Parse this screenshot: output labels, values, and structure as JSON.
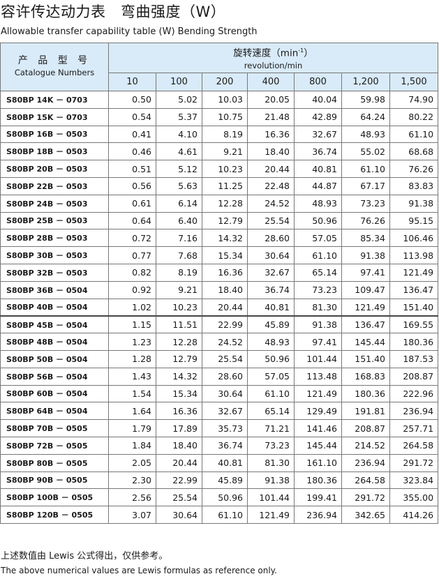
{
  "title": "容许传达动力表　弯曲强度（W）",
  "subtitle": "Allowable transfer capability table (W) Bending Strength",
  "header": {
    "catalogue_zh": "产 品 型 号",
    "catalogue_en": "Catalogue Numbers",
    "speed_zh_prefix": "旋转速度（min",
    "speed_sup": "-1",
    "speed_zh_suffix": "）",
    "speed_en": "revolution/min"
  },
  "columns": [
    "10",
    "100",
    "200",
    "400",
    "800",
    "1,200",
    "1,500"
  ],
  "rows": [
    {
      "model": "S80BP 14K － 0703",
      "values": [
        "0.50",
        "5.02",
        "10.03",
        "20.05",
        "40.04",
        "59.98",
        "74.90"
      ]
    },
    {
      "model": "S80BP 15K － 0703",
      "values": [
        "0.54",
        "5.37",
        "10.75",
        "21.48",
        "42.89",
        "64.24",
        "80.22"
      ]
    },
    {
      "model": "S80BP 16B － 0503",
      "values": [
        "0.41",
        "4.10",
        "8.19",
        "16.36",
        "32.67",
        "48.93",
        "61.10"
      ]
    },
    {
      "model": "S80BP 18B － 0503",
      "values": [
        "0.46",
        "4.61",
        "9.21",
        "18.40",
        "36.74",
        "55.02",
        "68.68"
      ]
    },
    {
      "model": "S80BP 20B － 0503",
      "values": [
        "0.51",
        "5.12",
        "10.23",
        "20.44",
        "40.81",
        "61.10",
        "76.26"
      ]
    },
    {
      "model": "S80BP 22B － 0503",
      "values": [
        "0.56",
        "5.63",
        "11.25",
        "22.48",
        "44.87",
        "67.17",
        "83.83"
      ]
    },
    {
      "model": "S80BP 24B － 0503",
      "values": [
        "0.61",
        "6.14",
        "12.28",
        "24.52",
        "48.93",
        "73.23",
        "91.38"
      ]
    },
    {
      "model": "S80BP 25B － 0503",
      "values": [
        "0.64",
        "6.40",
        "12.79",
        "25.54",
        "50.96",
        "76.26",
        "95.15"
      ]
    },
    {
      "model": "S80BP 28B － 0503",
      "values": [
        "0.72",
        "7.16",
        "14.32",
        "28.60",
        "57.05",
        "85.34",
        "106.46"
      ]
    },
    {
      "model": "S80BP 30B － 0503",
      "values": [
        "0.77",
        "7.68",
        "15.34",
        "30.64",
        "61.10",
        "91.38",
        "113.98"
      ]
    },
    {
      "model": "S80BP 32B － 0503",
      "values": [
        "0.82",
        "8.19",
        "16.36",
        "32.67",
        "65.14",
        "97.41",
        "121.49"
      ]
    },
    {
      "model": "S80BP 36B － 0504",
      "values": [
        "0.92",
        "9.21",
        "18.40",
        "36.74",
        "73.23",
        "109.47",
        "136.47"
      ]
    },
    {
      "model": "S80BP 40B － 0504",
      "values": [
        "1.02",
        "10.23",
        "20.44",
        "40.81",
        "81.30",
        "121.49",
        "151.40"
      ]
    },
    {
      "model": "S80BP 45B － 0504",
      "values": [
        "1.15",
        "11.51",
        "22.99",
        "45.89",
        "91.38",
        "136.47",
        "169.55"
      ]
    },
    {
      "model": "S80BP 48B － 0504",
      "values": [
        "1.23",
        "12.28",
        "24.52",
        "48.93",
        "97.41",
        "145.44",
        "180.36"
      ]
    },
    {
      "model": "S80BP 50B － 0504",
      "values": [
        "1.28",
        "12.79",
        "25.54",
        "50.96",
        "101.44",
        "151.40",
        "187.53"
      ]
    },
    {
      "model": "S80BP 56B － 0504",
      "values": [
        "1.43",
        "14.32",
        "28.60",
        "57.05",
        "113.48",
        "168.83",
        "208.87"
      ]
    },
    {
      "model": "S80BP 60B － 0504",
      "values": [
        "1.54",
        "15.34",
        "30.64",
        "61.10",
        "121.49",
        "180.36",
        "222.96"
      ]
    },
    {
      "model": "S80BP 64B － 0504",
      "values": [
        "1.64",
        "16.36",
        "32.67",
        "65.14",
        "129.49",
        "191.81",
        "236.94"
      ]
    },
    {
      "model": "S80BP 70B － 0505",
      "values": [
        "1.79",
        "17.89",
        "35.73",
        "71.21",
        "141.46",
        "208.87",
        "257.71"
      ]
    },
    {
      "model": "S80BP 72B － 0505",
      "values": [
        "1.84",
        "18.40",
        "36.74",
        "73.23",
        "145.44",
        "214.52",
        "264.58"
      ]
    },
    {
      "model": "S80BP 80B － 0505",
      "values": [
        "2.05",
        "20.44",
        "40.81",
        "81.30",
        "161.10",
        "236.94",
        "291.72"
      ]
    },
    {
      "model": "S80BP 90B － 0505",
      "values": [
        "2.30",
        "22.99",
        "45.89",
        "91.38",
        "180.36",
        "264.58",
        "323.84"
      ]
    },
    {
      "model": "S80BP 100B － 0505",
      "values": [
        "2.56",
        "25.54",
        "50.96",
        "101.44",
        "199.41",
        "291.72",
        "355.00"
      ]
    },
    {
      "model": "S80BP 120B － 0505",
      "values": [
        "3.07",
        "30.64",
        "61.10",
        "121.49",
        "236.94",
        "342.65",
        "414.26"
      ]
    }
  ],
  "note_zh": "上述数值由 Lewis 公式得出，仅供参考。",
  "note_en": "The above numerical values are Lewis formulas as reference only.",
  "colors": {
    "header_bg": "#d9ebf8",
    "border": "#777777"
  }
}
